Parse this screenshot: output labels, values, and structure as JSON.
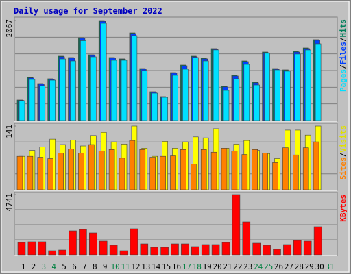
{
  "chart_data": [
    {
      "type": "bar",
      "title": "Daily usage for September 2022",
      "ylim": [
        0,
        2067
      ],
      "yticks": [
        2067
      ],
      "legend_separator": "/",
      "series": [
        {
          "name": "Hits",
          "color": "#00805c",
          "values": [
            425,
            892,
            765,
            864,
            1331,
            1303,
            1713,
            1359,
            2067,
            1303,
            1275,
            1812,
            1076,
            595,
            496,
            991,
            1147,
            1331,
            1289,
            1487,
            708,
            935,
            1232,
            793,
            1416,
            1076,
            1048,
            1430,
            1501,
            1671,
            null
          ]
        },
        {
          "name": "Files",
          "color": "#0040ff",
          "values": [
            418,
            880,
            752,
            850,
            1318,
            1290,
            1700,
            1345,
            2050,
            1290,
            1262,
            1798,
            1062,
            583,
            485,
            978,
            1133,
            1318,
            1275,
            1473,
            696,
            921,
            1218,
            780,
            1402,
            1062,
            1035,
            1416,
            1487,
            1657,
            null
          ]
        },
        {
          "name": "Pages",
          "color": "#00e0ff",
          "values": [
            410,
            850,
            722,
            835,
            1274,
            1232,
            1650,
            1317,
            2010,
            1246,
            1246,
            1756,
            1034,
            566,
            481,
            935,
            1062,
            1303,
            1232,
            1460,
            623,
            864,
            1161,
            736,
            1390,
            1048,
            1020,
            1374,
            1459,
            1586,
            null
          ]
        }
      ]
    },
    {
      "type": "bar",
      "ylim": [
        0,
        141
      ],
      "yticks": [
        141
      ],
      "legend_separator": "/",
      "series": [
        {
          "name": "Visits",
          "color": "#ffff00",
          "values": [
            74,
            87,
            95,
            112,
            100,
            110,
            97,
            120,
            127,
            106,
            101,
            141,
            92,
            74,
            107,
            92,
            106,
            117,
            115,
            135,
            92,
            101,
            109,
            87,
            80,
            69,
            132,
            132,
            121,
            141,
            null
          ]
        },
        {
          "name": "Sites",
          "color": "#ff8000",
          "values": [
            74,
            74,
            72,
            69,
            81,
            90,
            81,
            100,
            86,
            89,
            70,
            109,
            89,
            72,
            74,
            75,
            89,
            57,
            89,
            83,
            92,
            86,
            78,
            89,
            81,
            60,
            93,
            77,
            93,
            106,
            null
          ]
        }
      ]
    },
    {
      "type": "bar",
      "ylim": [
        0,
        4741
      ],
      "yticks": [
        4741
      ],
      "series": [
        {
          "name": "KBytes",
          "color": "#ff0000",
          "values": [
            970,
            1024,
            1024,
            323,
            377,
            1886,
            1993,
            1724,
            1078,
            754,
            323,
            2047,
            862,
            593,
            593,
            862,
            862,
            647,
            808,
            808,
            970,
            4741,
            2586,
            916,
            754,
            431,
            808,
            1131,
            1078,
            2209,
            null
          ]
        }
      ],
      "categories": [
        "1",
        "2",
        "3",
        "4",
        "5",
        "6",
        "7",
        "8",
        "9",
        "10",
        "11",
        "12",
        "13",
        "14",
        "15",
        "16",
        "17",
        "18",
        "19",
        "20",
        "21",
        "22",
        "23",
        "24",
        "25",
        "26",
        "27",
        "28",
        "29",
        "30",
        "31"
      ],
      "category_colors": [
        "#000000",
        "#000000",
        "#008040",
        "#008040",
        "#000000",
        "#000000",
        "#000000",
        "#000000",
        "#000000",
        "#008040",
        "#008040",
        "#000000",
        "#000000",
        "#000000",
        "#000000",
        "#000000",
        "#008040",
        "#008040",
        "#000000",
        "#000000",
        "#000000",
        "#000000",
        "#000000",
        "#008040",
        "#008040",
        "#000000",
        "#000000",
        "#000000",
        "#000000",
        "#000000",
        "#008040"
      ]
    }
  ]
}
